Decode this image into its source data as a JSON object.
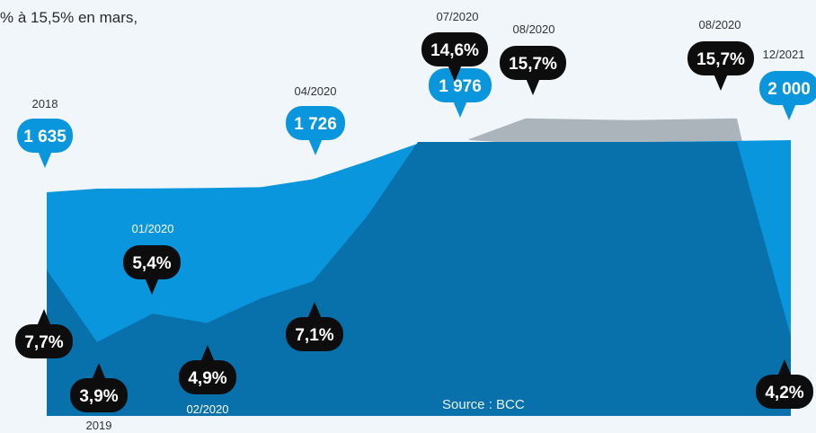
{
  "headline": "% à 15,5% en mars,",
  "source": "Source : BCC",
  "colors": {
    "background": "#f1f6fb",
    "volume_area": "#0a96dc",
    "rate_area": "#0870aa",
    "rate_peak_area": "#aab4ba",
    "bubble_dark": "#0d0d0d",
    "bubble_blue": "#0a96dc"
  },
  "chart_data": {
    "type": "area",
    "series": [
      {
        "values": [
          1635,
          1660,
          1662,
          1665,
          1670,
          1726,
          1850,
          1976,
          1975,
          1976,
          1985,
          2000
        ],
        "annotations": [
          {
            "period": "2018",
            "value": "1 635"
          },
          {
            "period": "04/2020",
            "value": "1 726"
          },
          {
            "period": "07/2020",
            "value": "1 976"
          },
          {
            "period": "12/2021",
            "value": "2 000"
          }
        ]
      },
      {
        "values": [
          7.7,
          3.9,
          5.4,
          4.9,
          6.2,
          7.1,
          10.5,
          14.6,
          15.7,
          15.7,
          15.6,
          15.7,
          4.2
        ],
        "annotations": [
          {
            "period": "",
            "value": "7,7%"
          },
          {
            "period": "2019",
            "value": "3,9%"
          },
          {
            "period": "01/2020",
            "value": "5,4%"
          },
          {
            "period": "02/2020",
            "value": "4,9%"
          },
          {
            "period": "",
            "value": "7,1%"
          },
          {
            "period": "07/2020",
            "value": "14,6%"
          },
          {
            "period": "08/2020",
            "value": "15,7%"
          },
          {
            "period": "08/2020",
            "value": "15,7%"
          },
          {
            "period": "",
            "value": "4,2%"
          }
        ]
      }
    ]
  }
}
